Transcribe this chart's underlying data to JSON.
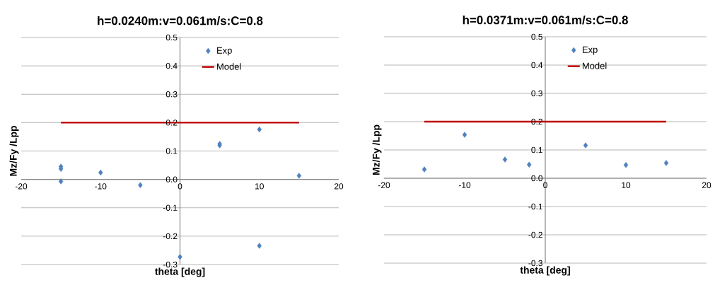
{
  "chart_data": [
    {
      "type": "scatter",
      "title": "h=0.0240m:v=0.061m/s:C=0.8",
      "xlabel": "theta [deg]",
      "ylabel": "Mz/Fy /Lpp",
      "series": [
        {
          "name": "Exp",
          "marker": "diamond",
          "color": "#4f81bd",
          "x": [
            -15,
            -15,
            -15,
            -10,
            -5,
            0,
            5,
            5,
            10,
            10,
            15
          ],
          "values": [
            0.045,
            0.037,
            -0.007,
            0.024,
            -0.02,
            -0.273,
            0.125,
            0.12,
            0.176,
            -0.234,
            0.013
          ]
        },
        {
          "name": "Model",
          "type": "line",
          "marker": "none",
          "color": "#c00000",
          "x": [
            -15,
            15
          ],
          "values": [
            0.2,
            0.2
          ]
        }
      ],
      "xlim": [
        -20,
        20
      ],
      "ylim": [
        -0.3,
        0.5
      ],
      "xticks": [
        -20,
        -10,
        0,
        10,
        20
      ],
      "yticks": [
        {
          "value": -0.3,
          "label": "-0.3"
        },
        {
          "value": -0.2,
          "label": "-0.2"
        },
        {
          "value": -0.1,
          "label": "-0.1"
        },
        {
          "value": 0,
          "label": "0.0"
        },
        {
          "value": 0.1,
          "label": "0.1"
        },
        {
          "value": 0.2,
          "label": "0.2"
        },
        {
          "value": 0.3,
          "label": "0.3"
        },
        {
          "value": 0.4,
          "label": "0.4"
        },
        {
          "value": 0.5,
          "label": "0.5"
        }
      ],
      "grid": "y",
      "legend": "top right"
    },
    {
      "type": "scatter",
      "title": "h=0.0371m:v=0.061m/s:C=0.8",
      "xlabel": "theta [deg]",
      "ylabel": "Mz/Fy /Lpp",
      "series": [
        {
          "name": "Exp",
          "marker": "diamond",
          "color": "#4f81bd",
          "x": [
            -15,
            -10,
            -5,
            -2,
            5,
            10,
            15
          ],
          "values": [
            0.031,
            0.154,
            0.066,
            0.048,
            0.116,
            0.047,
            0.054
          ]
        },
        {
          "name": "Model",
          "type": "line",
          "marker": "none",
          "color": "#c00000",
          "x": [
            -15,
            15
          ],
          "values": [
            0.2,
            0.2
          ]
        }
      ],
      "xlim": [
        -20,
        20
      ],
      "ylim": [
        -0.3,
        0.5
      ],
      "xticks": [
        -20,
        -10,
        0,
        10,
        20
      ],
      "yticks": [
        {
          "value": -0.3,
          "label": "-0.3"
        },
        {
          "value": -0.2,
          "label": "-0.2"
        },
        {
          "value": -0.1,
          "label": "-0.1"
        },
        {
          "value": 0,
          "label": "0.0"
        },
        {
          "value": 0.1,
          "label": "0.1"
        },
        {
          "value": 0.2,
          "label": "0.2"
        },
        {
          "value": 0.3,
          "label": "0.3"
        },
        {
          "value": 0.4,
          "label": "0.4"
        },
        {
          "value": 0.5,
          "label": "0.5"
        }
      ],
      "grid": "y",
      "legend": "top right"
    }
  ]
}
